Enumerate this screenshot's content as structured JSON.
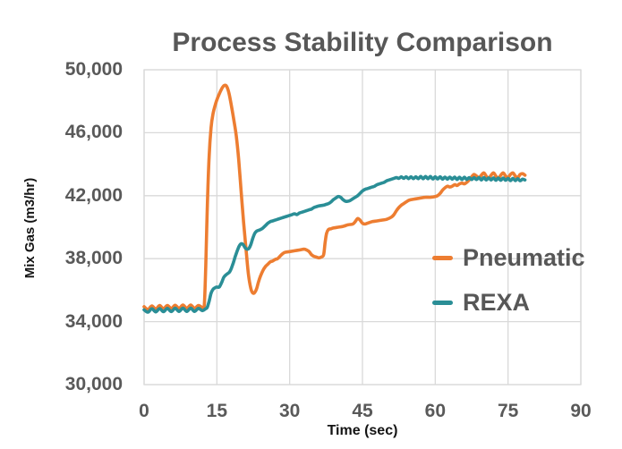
{
  "chart_data": {
    "type": "line",
    "title": "Process Stability Comparison",
    "xlabel": "Time (sec)",
    "ylabel": "Mix Gas (m3/hr)",
    "xlim": [
      0,
      90
    ],
    "ylim": [
      30000,
      50000
    ],
    "x_ticks": [
      0,
      15,
      30,
      45,
      60,
      75,
      90
    ],
    "x_tick_labels": [
      "0",
      "15",
      "30",
      "45",
      "60",
      "75",
      "90"
    ],
    "y_ticks": [
      30000,
      34000,
      38000,
      42000,
      46000,
      50000
    ],
    "y_tick_labels": [
      "30,000",
      "34,000",
      "38,000",
      "42,000",
      "46,000",
      "50,000"
    ],
    "grid": true,
    "legend_position": "right-inside",
    "colors": {
      "grid": "#D9D9D9",
      "plot_border": "#D9D9D9",
      "title_text": "#575757",
      "tick_text": "#595959",
      "axis_title_text": "#141414",
      "background": "#FFFFFF"
    },
    "series": [
      {
        "name": "Pneumatic",
        "color": "#ED7D31",
        "points": [
          [
            0,
            34950
          ],
          [
            0.8,
            34780
          ],
          [
            1.6,
            35000
          ],
          [
            2.4,
            34800
          ],
          [
            3.2,
            35020
          ],
          [
            4,
            34820
          ],
          [
            4.8,
            35030
          ],
          [
            5.6,
            34830
          ],
          [
            6.4,
            35040
          ],
          [
            7.2,
            34840
          ],
          [
            8,
            35050
          ],
          [
            8.8,
            34850
          ],
          [
            9.6,
            35050
          ],
          [
            10.4,
            34850
          ],
          [
            11.2,
            35030
          ],
          [
            12,
            34900
          ],
          [
            12.4,
            35000
          ],
          [
            12.7,
            37500
          ],
          [
            13,
            41000
          ],
          [
            13.4,
            44500
          ],
          [
            13.8,
            46300
          ],
          [
            14.2,
            47200
          ],
          [
            14.8,
            47900
          ],
          [
            15.4,
            48400
          ],
          [
            16,
            48800
          ],
          [
            16.5,
            49000
          ],
          [
            17,
            48950
          ],
          [
            17.5,
            48500
          ],
          [
            18,
            47700
          ],
          [
            18.5,
            46800
          ],
          [
            19,
            45800
          ],
          [
            19.5,
            44300
          ],
          [
            20,
            42300
          ],
          [
            20.5,
            40300
          ],
          [
            21,
            38600
          ],
          [
            21.5,
            37000
          ],
          [
            22,
            36100
          ],
          [
            22.4,
            35820
          ],
          [
            22.8,
            35850
          ],
          [
            23.2,
            36100
          ],
          [
            23.6,
            36550
          ],
          [
            24,
            36900
          ],
          [
            24.5,
            37250
          ],
          [
            25,
            37500
          ],
          [
            25.5,
            37650
          ],
          [
            26,
            37800
          ],
          [
            26.5,
            37850
          ],
          [
            27,
            37950
          ],
          [
            27.5,
            38000
          ],
          [
            28,
            38150
          ],
          [
            28.5,
            38300
          ],
          [
            29,
            38400
          ],
          [
            30,
            38450
          ],
          [
            31,
            38500
          ],
          [
            32,
            38550
          ],
          [
            33,
            38600
          ],
          [
            33.5,
            38550
          ],
          [
            34,
            38450
          ],
          [
            34.5,
            38250
          ],
          [
            35,
            38150
          ],
          [
            35.5,
            38100
          ],
          [
            36,
            38050
          ],
          [
            36.5,
            38100
          ],
          [
            37,
            38250
          ],
          [
            37.3,
            39000
          ],
          [
            37.6,
            39600
          ],
          [
            38,
            39850
          ],
          [
            38.5,
            39900
          ],
          [
            39,
            39950
          ],
          [
            40,
            40000
          ],
          [
            41,
            40050
          ],
          [
            42,
            40150
          ],
          [
            43,
            40200
          ],
          [
            43.5,
            40350
          ],
          [
            44,
            40550
          ],
          [
            44.5,
            40450
          ],
          [
            45,
            40250
          ],
          [
            45.5,
            40200
          ],
          [
            46,
            40250
          ],
          [
            47,
            40350
          ],
          [
            48,
            40400
          ],
          [
            49,
            40450
          ],
          [
            50,
            40500
          ],
          [
            51,
            40650
          ],
          [
            51.5,
            40800
          ],
          [
            52,
            41050
          ],
          [
            52.5,
            41250
          ],
          [
            53,
            41400
          ],
          [
            53.5,
            41500
          ],
          [
            54,
            41600
          ],
          [
            54.5,
            41700
          ],
          [
            55,
            41750
          ],
          [
            56,
            41800
          ],
          [
            57,
            41850
          ],
          [
            58,
            41900
          ],
          [
            59,
            41900
          ],
          [
            60,
            41950
          ],
          [
            60.5,
            42000
          ],
          [
            61,
            42150
          ],
          [
            61.5,
            42350
          ],
          [
            62,
            42500
          ],
          [
            62.5,
            42600
          ],
          [
            63,
            42550
          ],
          [
            63.5,
            42600
          ],
          [
            64,
            42700
          ],
          [
            64.5,
            42650
          ],
          [
            65,
            42750
          ],
          [
            65.5,
            42800
          ],
          [
            66,
            42750
          ],
          [
            66.5,
            42850
          ],
          [
            67,
            43000
          ],
          [
            67.5,
            43200
          ],
          [
            68,
            43350
          ],
          [
            68.5,
            43250
          ],
          [
            69,
            43150
          ],
          [
            69.5,
            43300
          ],
          [
            70,
            43450
          ],
          [
            70.5,
            43250
          ],
          [
            71,
            43100
          ],
          [
            71.5,
            43300
          ],
          [
            72,
            43450
          ],
          [
            72.5,
            43250
          ],
          [
            73,
            43100
          ],
          [
            73.5,
            43300
          ],
          [
            74,
            43450
          ],
          [
            74.5,
            43250
          ],
          [
            75,
            43150
          ],
          [
            75.5,
            43350
          ],
          [
            76,
            43450
          ],
          [
            76.5,
            43250
          ],
          [
            77,
            43150
          ],
          [
            77.5,
            43350
          ],
          [
            78,
            43400
          ],
          [
            78.5,
            43300
          ]
        ]
      },
      {
        "name": "REXA",
        "color": "#2A8E96",
        "points": [
          [
            0,
            34750
          ],
          [
            0.8,
            34600
          ],
          [
            1.6,
            34820
          ],
          [
            2.4,
            34620
          ],
          [
            3.2,
            34830
          ],
          [
            4,
            34630
          ],
          [
            4.8,
            34840
          ],
          [
            5.6,
            34640
          ],
          [
            6.4,
            34850
          ],
          [
            7.2,
            34650
          ],
          [
            8,
            34850
          ],
          [
            8.8,
            34650
          ],
          [
            9.6,
            34850
          ],
          [
            10.4,
            34650
          ],
          [
            11.2,
            34840
          ],
          [
            12,
            34700
          ],
          [
            12.6,
            34800
          ],
          [
            13,
            34900
          ],
          [
            13.4,
            35300
          ],
          [
            13.8,
            35800
          ],
          [
            14.2,
            36050
          ],
          [
            14.6,
            36150
          ],
          [
            15,
            36200
          ],
          [
            15.5,
            36200
          ],
          [
            16,
            36500
          ],
          [
            16.4,
            36800
          ],
          [
            16.8,
            36950
          ],
          [
            17.2,
            37050
          ],
          [
            17.6,
            37150
          ],
          [
            18,
            37400
          ],
          [
            18.4,
            37750
          ],
          [
            18.8,
            38150
          ],
          [
            19.2,
            38500
          ],
          [
            19.6,
            38800
          ],
          [
            20,
            38950
          ],
          [
            20.4,
            38900
          ],
          [
            20.8,
            38700
          ],
          [
            21.2,
            38600
          ],
          [
            21.6,
            38650
          ],
          [
            22,
            38900
          ],
          [
            22.4,
            39300
          ],
          [
            22.8,
            39600
          ],
          [
            23.2,
            39750
          ],
          [
            23.6,
            39800
          ],
          [
            24,
            39850
          ],
          [
            24.5,
            39950
          ],
          [
            25,
            40100
          ],
          [
            25.5,
            40250
          ],
          [
            26,
            40350
          ],
          [
            26.5,
            40400
          ],
          [
            27,
            40450
          ],
          [
            27.5,
            40500
          ],
          [
            28,
            40550
          ],
          [
            28.5,
            40600
          ],
          [
            29,
            40650
          ],
          [
            29.5,
            40700
          ],
          [
            30,
            40750
          ],
          [
            30.5,
            40800
          ],
          [
            31,
            40850
          ],
          [
            31.5,
            40800
          ],
          [
            32,
            40900
          ],
          [
            32.5,
            40950
          ],
          [
            33,
            41000
          ],
          [
            33.5,
            41050
          ],
          [
            34,
            41100
          ],
          [
            34.5,
            41150
          ],
          [
            35,
            41250
          ],
          [
            35.5,
            41300
          ],
          [
            36,
            41350
          ],
          [
            37,
            41400
          ],
          [
            37.5,
            41450
          ],
          [
            38,
            41500
          ],
          [
            38.5,
            41600
          ],
          [
            39,
            41750
          ],
          [
            39.5,
            41850
          ],
          [
            40,
            41950
          ],
          [
            40.5,
            41900
          ],
          [
            41,
            41750
          ],
          [
            41.5,
            41650
          ],
          [
            42,
            41650
          ],
          [
            42.5,
            41700
          ],
          [
            43,
            41800
          ],
          [
            43.5,
            41900
          ],
          [
            44,
            42000
          ],
          [
            44.5,
            42150
          ],
          [
            45,
            42300
          ],
          [
            45.5,
            42400
          ],
          [
            46,
            42450
          ],
          [
            46.5,
            42500
          ],
          [
            47,
            42550
          ],
          [
            47.5,
            42600
          ],
          [
            48,
            42700
          ],
          [
            48.5,
            42750
          ],
          [
            49,
            42800
          ],
          [
            49.5,
            42850
          ],
          [
            50,
            42950
          ],
          [
            50.5,
            43000
          ],
          [
            51,
            43050
          ],
          [
            51.5,
            43100
          ],
          [
            52,
            43150
          ],
          [
            52.5,
            43100
          ],
          [
            53,
            43200
          ],
          [
            53.5,
            43100
          ],
          [
            54,
            43200
          ],
          [
            54.5,
            43080
          ],
          [
            55,
            43200
          ],
          [
            55.5,
            43080
          ],
          [
            56,
            43200
          ],
          [
            56.5,
            43080
          ],
          [
            57,
            43220
          ],
          [
            57.5,
            43080
          ],
          [
            58,
            43220
          ],
          [
            58.5,
            43080
          ],
          [
            59,
            43220
          ],
          [
            59.5,
            43060
          ],
          [
            60,
            43200
          ],
          [
            60.5,
            43060
          ],
          [
            61,
            43200
          ],
          [
            61.5,
            43050
          ],
          [
            62,
            43180
          ],
          [
            62.5,
            43050
          ],
          [
            63,
            43180
          ],
          [
            63.5,
            43050
          ],
          [
            64,
            43180
          ],
          [
            64.5,
            43030
          ],
          [
            65,
            43170
          ],
          [
            65.5,
            43030
          ],
          [
            66,
            43170
          ],
          [
            66.5,
            43030
          ],
          [
            67,
            43150
          ],
          [
            67.5,
            43020
          ],
          [
            68,
            43150
          ],
          [
            68.5,
            43020
          ],
          [
            69,
            43150
          ],
          [
            69.5,
            43000
          ],
          [
            70,
            43150
          ],
          [
            70.5,
            43000
          ],
          [
            71,
            43130
          ],
          [
            71.5,
            43000
          ],
          [
            72,
            43130
          ],
          [
            72.5,
            42980
          ],
          [
            73,
            43120
          ],
          [
            73.5,
            42980
          ],
          [
            74,
            43120
          ],
          [
            74.5,
            42980
          ],
          [
            75,
            43100
          ],
          [
            75.5,
            42960
          ],
          [
            76,
            43100
          ],
          [
            76.5,
            42960
          ],
          [
            77,
            43080
          ],
          [
            77.5,
            42950
          ],
          [
            78,
            43050
          ],
          [
            78.5,
            43000
          ]
        ]
      }
    ]
  }
}
